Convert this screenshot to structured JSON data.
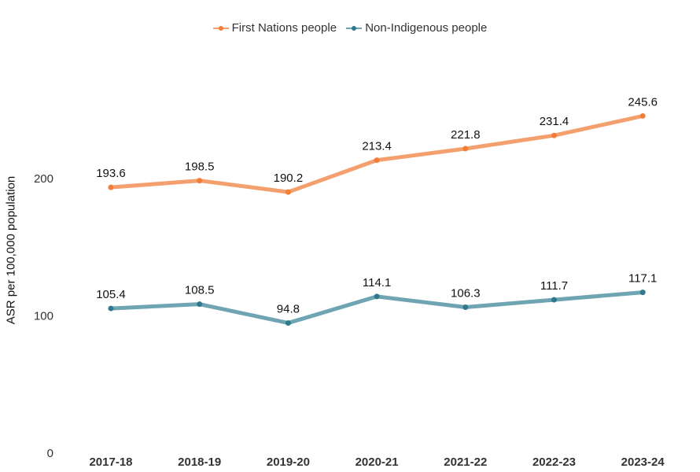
{
  "chart_data": {
    "type": "line",
    "title": "",
    "xlabel": "",
    "ylabel": "ASR per 100,000 population",
    "categories": [
      "2017-18",
      "2018-19",
      "2019-20",
      "2020-21",
      "2021-22",
      "2022-23",
      "2023-24"
    ],
    "ylim": [
      0,
      280
    ],
    "yticks": [
      0,
      100,
      200
    ],
    "grid": false,
    "legend_position": "top-center",
    "series": [
      {
        "name": "First Nations people",
        "color": "#F4A06E",
        "marker_color": "#F27E3A",
        "values": [
          193.6,
          198.5,
          190.2,
          213.4,
          221.8,
          231.4,
          245.6
        ]
      },
      {
        "name": "Non-Indigenous people",
        "color": "#6FA4B3",
        "marker_color": "#2E7A8C",
        "values": [
          105.4,
          108.5,
          94.8,
          114.1,
          106.3,
          111.7,
          117.1
        ]
      }
    ]
  }
}
